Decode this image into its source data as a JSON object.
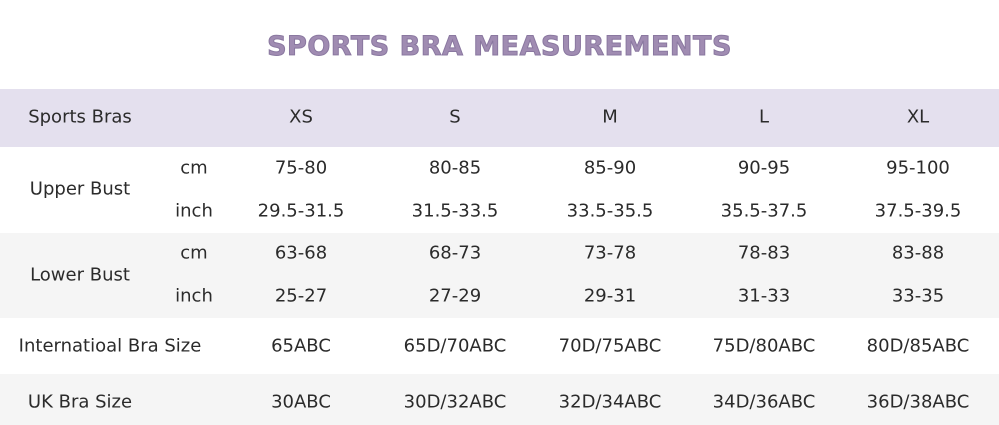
{
  "title": "SPORTS BRA MEASUREMENTS",
  "header": {
    "label": "Sports Bras",
    "sizes": [
      "XS",
      "S",
      "M",
      "L",
      "XL"
    ]
  },
  "rows": {
    "upper_bust": {
      "label": "Upper Bust",
      "cm": {
        "unit": "cm",
        "values": [
          "75-80",
          "80-85",
          "85-90",
          "90-95",
          "95-100"
        ]
      },
      "inch": {
        "unit": "inch",
        "values": [
          "29.5-31.5",
          "31.5-33.5",
          "33.5-35.5",
          "35.5-37.5",
          "37.5-39.5"
        ]
      }
    },
    "lower_bust": {
      "label": "Lower Bust",
      "cm": {
        "unit": "cm",
        "values": [
          "63-68",
          "68-73",
          "73-78",
          "78-83",
          "83-88"
        ]
      },
      "inch": {
        "unit": "inch",
        "values": [
          "25-27",
          "27-29",
          "29-31",
          "31-33",
          "33-35"
        ]
      }
    },
    "international": {
      "label": "Internatioal Bra Size",
      "values": [
        "65ABC",
        "65D/70ABC",
        "70D/75ABC",
        "75D/80ABC",
        "80D/85ABC"
      ]
    },
    "uk": {
      "label": "UK Bra Size",
      "values": [
        "30ABC",
        "30D/32ABC",
        "32D/34ABC",
        "34D/36ABC",
        "36D/38ABC"
      ]
    }
  },
  "colors": {
    "title": "#a08cb2",
    "header_band": "#e4e0ee",
    "alt_band": "#f5f5f5",
    "text": "#2b2b2b"
  }
}
